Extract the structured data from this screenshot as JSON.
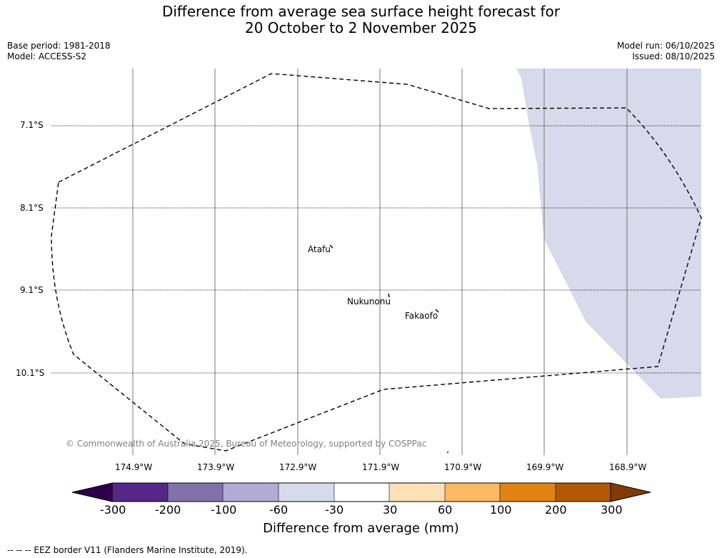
{
  "title": {
    "line1": "Difference from average sea surface height forecast for",
    "line2": "20 October to 2 November 2025"
  },
  "meta_left": {
    "base_period": "Base period: 1981-2018",
    "model": "Model: ACCESS-S2"
  },
  "meta_right": {
    "model_run": "Model run: 06/10/2025",
    "issued": "Issued: 08/10/2025"
  },
  "latitude_labels": [
    "7.1°S",
    "8.1°S",
    "9.1°S",
    "10.1°S"
  ],
  "longitude_labels": [
    "174.9°W",
    "173.9°W",
    "172.9°W",
    "171.9°W",
    "170.9°W",
    "169.9°W",
    "168.9°W"
  ],
  "places": {
    "atafu": "Atafu",
    "nukunonu": "Nukunonu",
    "fakaofo": "Fakaofo"
  },
  "copyright": "© Commonwealth of Australia 2025, Bureau of Meteorology, supported by COSPPac",
  "colorbar": {
    "ticks": [
      "-300",
      "-200",
      "-100",
      "-60",
      "-30",
      "30",
      "60",
      "100",
      "200",
      "300"
    ],
    "colors": [
      "#2d004b",
      "#542788",
      "#8073ac",
      "#b2abd2",
      "#d8daeb",
      "#ffffff",
      "#fee0b6",
      "#fdb863",
      "#e08214",
      "#b35806",
      "#7f3b08"
    ],
    "title": "Difference from average (mm)"
  },
  "map_fill_color": "#d8daeb",
  "footnote": "--  --  -- EEZ border V11 (Flanders Marine Institute, 2019)."
}
